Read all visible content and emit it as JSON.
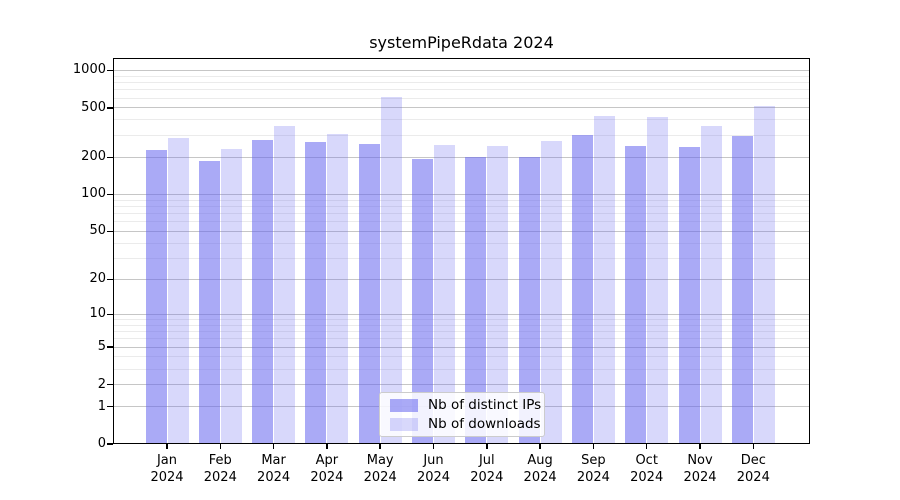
{
  "chart_data": {
    "type": "bar",
    "title": "systemPipeRdata 2024",
    "categories": [
      "Jan",
      "Feb",
      "Mar",
      "Apr",
      "May",
      "Jun",
      "Jul",
      "Aug",
      "Sep",
      "Oct",
      "Nov",
      "Dec"
    ],
    "year_label": "2024",
    "series": [
      {
        "name": "Nb of distinct IPs",
        "color": "rgba(100,100,238,0.55)",
        "values": [
          228,
          186,
          275,
          265,
          256,
          193,
          200,
          200,
          302,
          246,
          242,
          296
        ]
      },
      {
        "name": "Nb of downloads",
        "color": "rgba(100,100,238,0.25)",
        "values": [
          288,
          234,
          360,
          308,
          613,
          251,
          248,
          270,
          428,
          425,
          356,
          517
        ]
      }
    ],
    "yscale": "log1p",
    "yticks": [
      0,
      1,
      2,
      5,
      10,
      20,
      50,
      100,
      200,
      500,
      1000
    ],
    "ylim": [
      0,
      1260
    ],
    "xlabel": "",
    "ylabel": "",
    "grid": "both-horizontal",
    "legend_position": "lower center"
  },
  "style_colors": {
    "major_grid": "#c6c6c6",
    "minor_grid": "#ebebeb",
    "spine": "#000000",
    "background": "#ffffff"
  }
}
